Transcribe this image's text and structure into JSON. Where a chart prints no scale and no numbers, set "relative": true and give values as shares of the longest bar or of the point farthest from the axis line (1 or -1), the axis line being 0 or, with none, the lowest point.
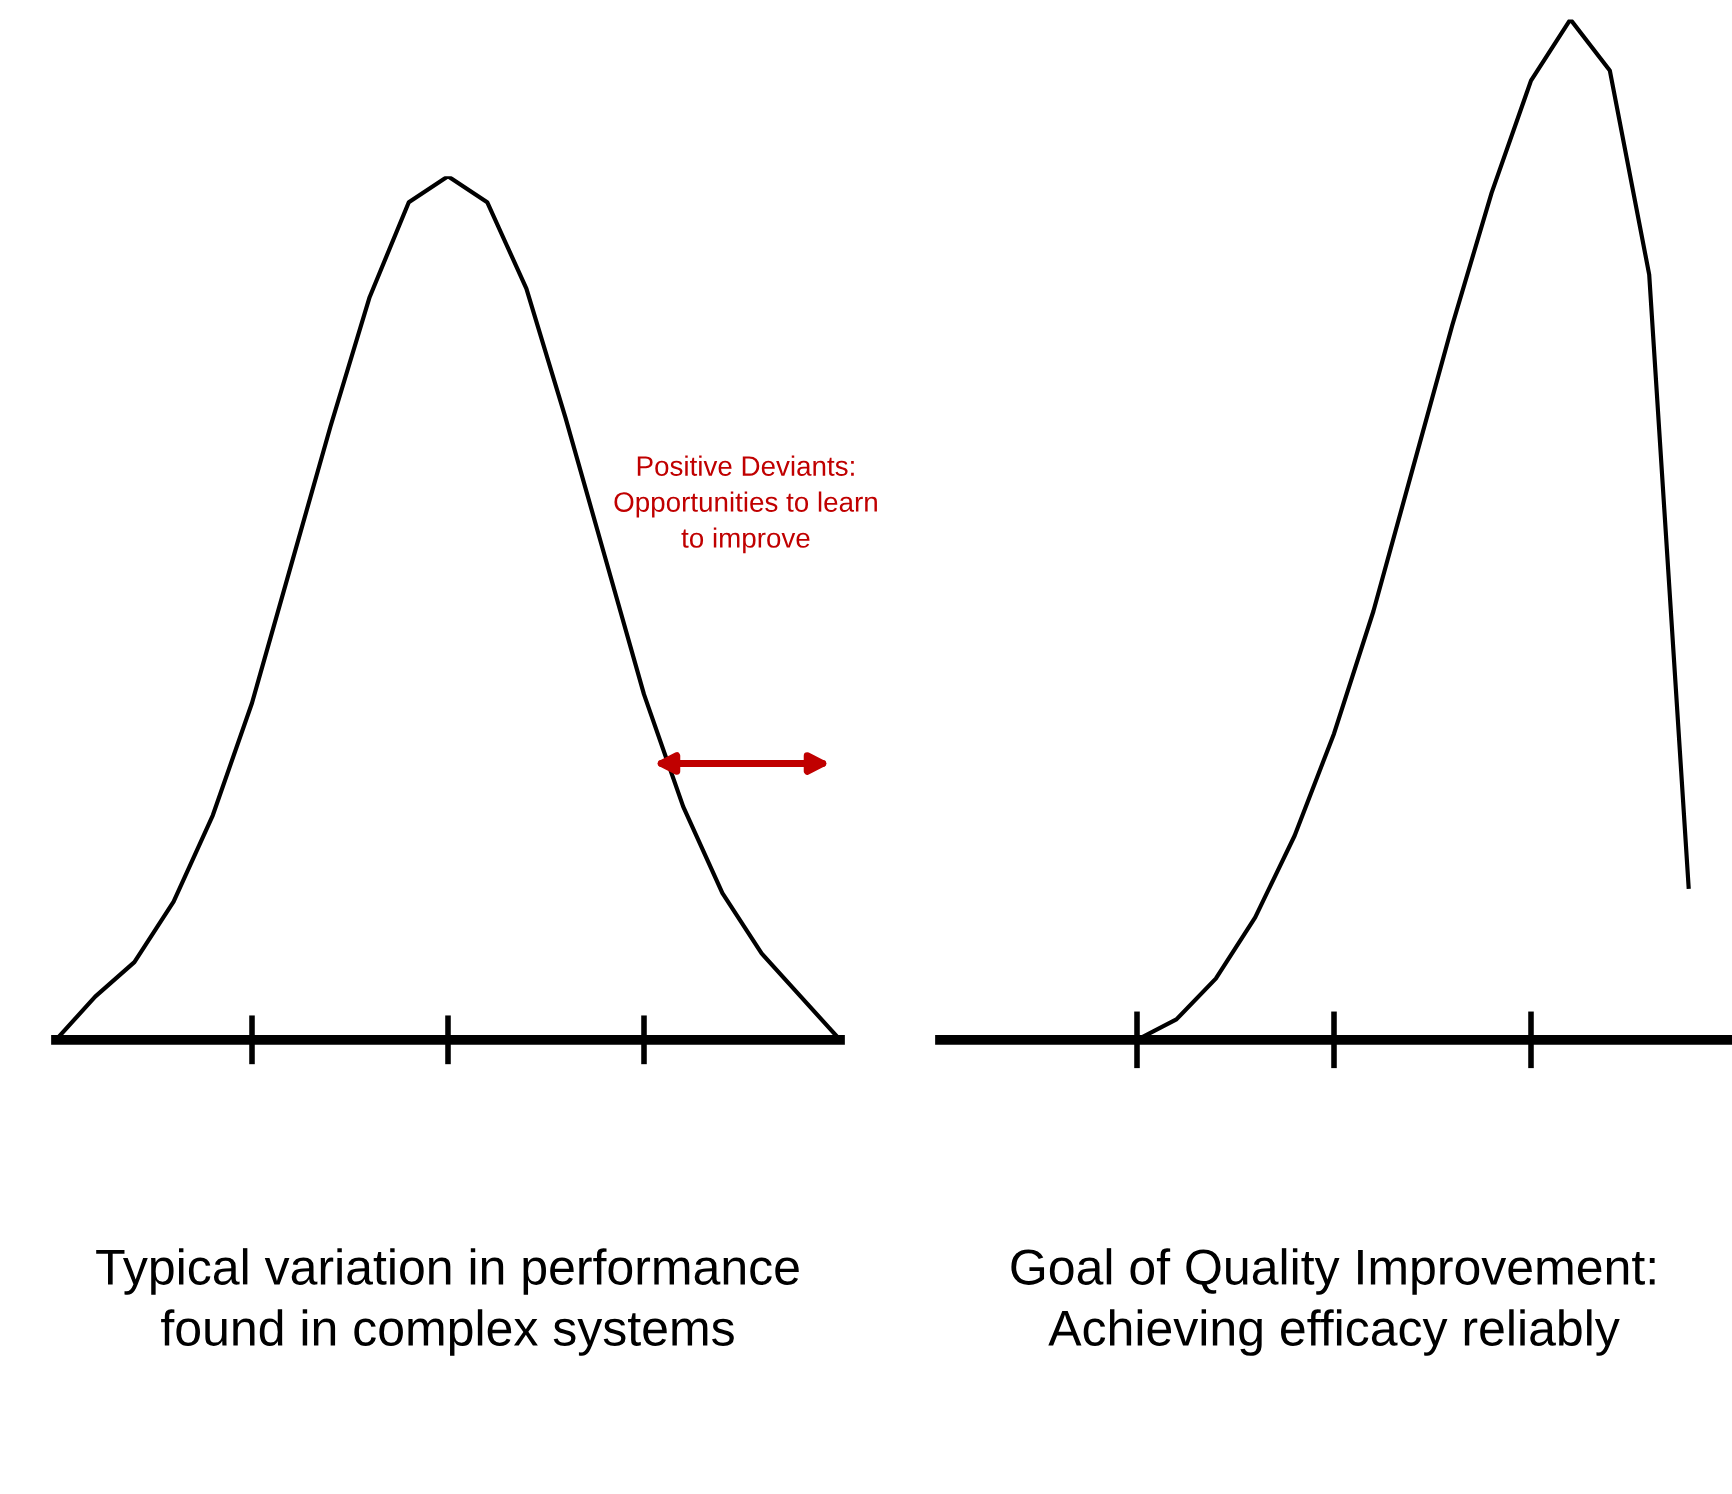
{
  "chart_data": [
    {
      "type": "line",
      "relative": true,
      "xlabel": "Typical variation in performance\nfound in complex systems",
      "categories": [
        null,
        null,
        null,
        null,
        null,
        null,
        null,
        null,
        null,
        null,
        null,
        null,
        null,
        null,
        null,
        null,
        null,
        null,
        null,
        null,
        null
      ],
      "series": [
        {
          "color": "#000000",
          "values": [
            0,
            0.05,
            0.09,
            0.16,
            0.26,
            0.39,
            0.55,
            0.71,
            0.86,
            0.97,
            1.0,
            0.97,
            0.87,
            0.72,
            0.56,
            0.4,
            0.27,
            0.17,
            0.1,
            0.05,
            0
          ]
        }
      ],
      "annotations": [
        "Positive Deviants:\nOpportunities to learn\nto improve"
      ]
    },
    {
      "type": "line",
      "relative": true,
      "xlabel": "Goal of Quality Improvement:\nAchieving efficacy reliably",
      "categories": [
        null,
        null,
        null,
        null,
        null,
        null,
        null,
        null,
        null,
        null,
        null,
        null,
        null,
        null,
        null,
        null,
        null,
        null,
        null,
        null,
        null
      ],
      "series": [
        {
          "color": "#000000",
          "values": [
            null,
            null,
            null,
            null,
            null,
            0,
            0.02,
            0.06,
            0.12,
            0.2,
            0.3,
            0.42,
            0.56,
            0.7,
            0.83,
            0.94,
            1.0,
            0.95,
            0.75,
            0.15,
            null
          ]
        }
      ]
    }
  ]
}
